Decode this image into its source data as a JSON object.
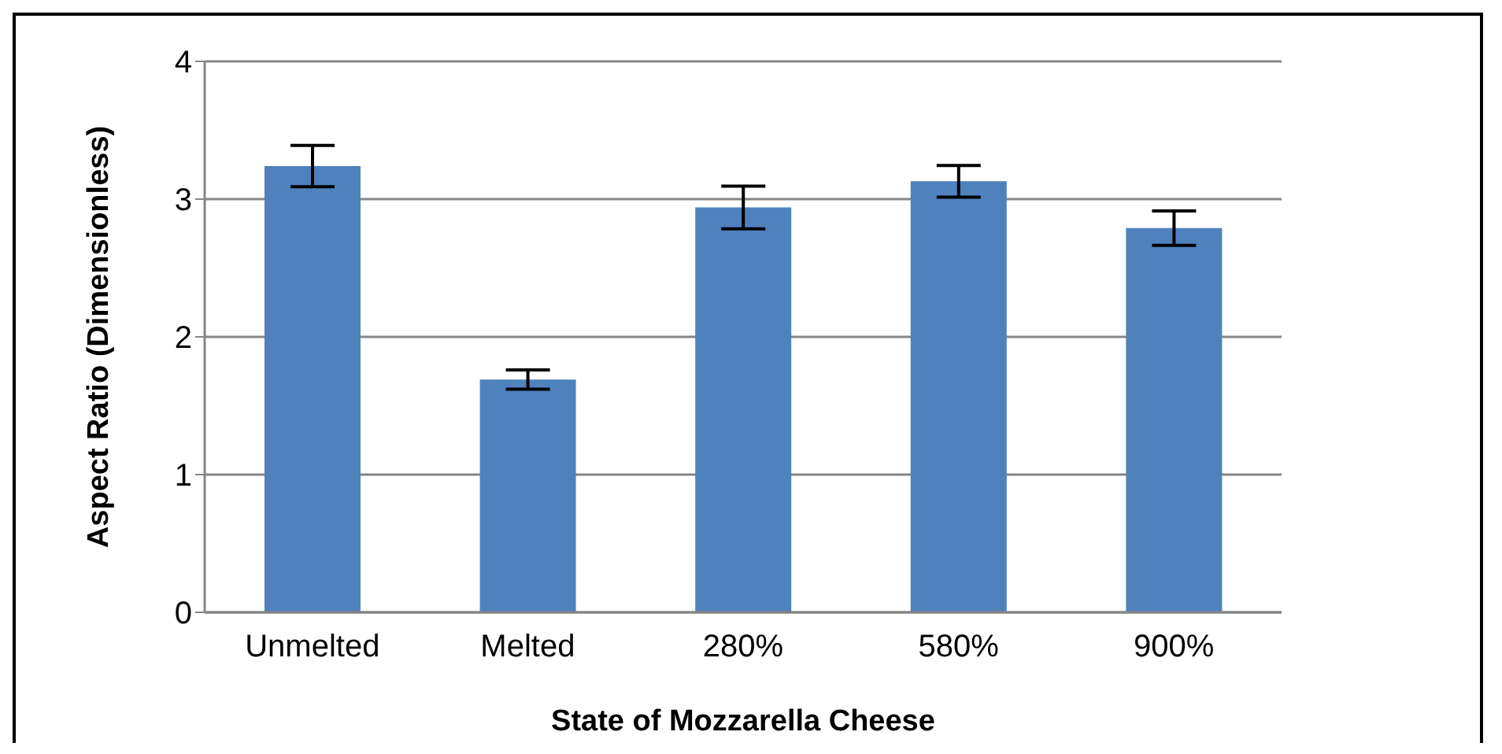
{
  "chart_data": {
    "type": "bar",
    "xlabel": "State of Mozzarella Cheese",
    "ylabel": "Aspect Ratio (Dimensionless)",
    "categories": [
      "Unmelted",
      "Melted",
      "280%",
      "580%",
      "900%"
    ],
    "values": [
      3.24,
      1.69,
      2.94,
      3.13,
      2.79
    ],
    "errors": [
      0.15,
      0.07,
      0.155,
      0.115,
      0.125
    ],
    "color": "#4f81bd",
    "ylim": [
      0,
      4
    ],
    "yticks": [
      0,
      1,
      2,
      3,
      4
    ],
    "grid": "y"
  }
}
